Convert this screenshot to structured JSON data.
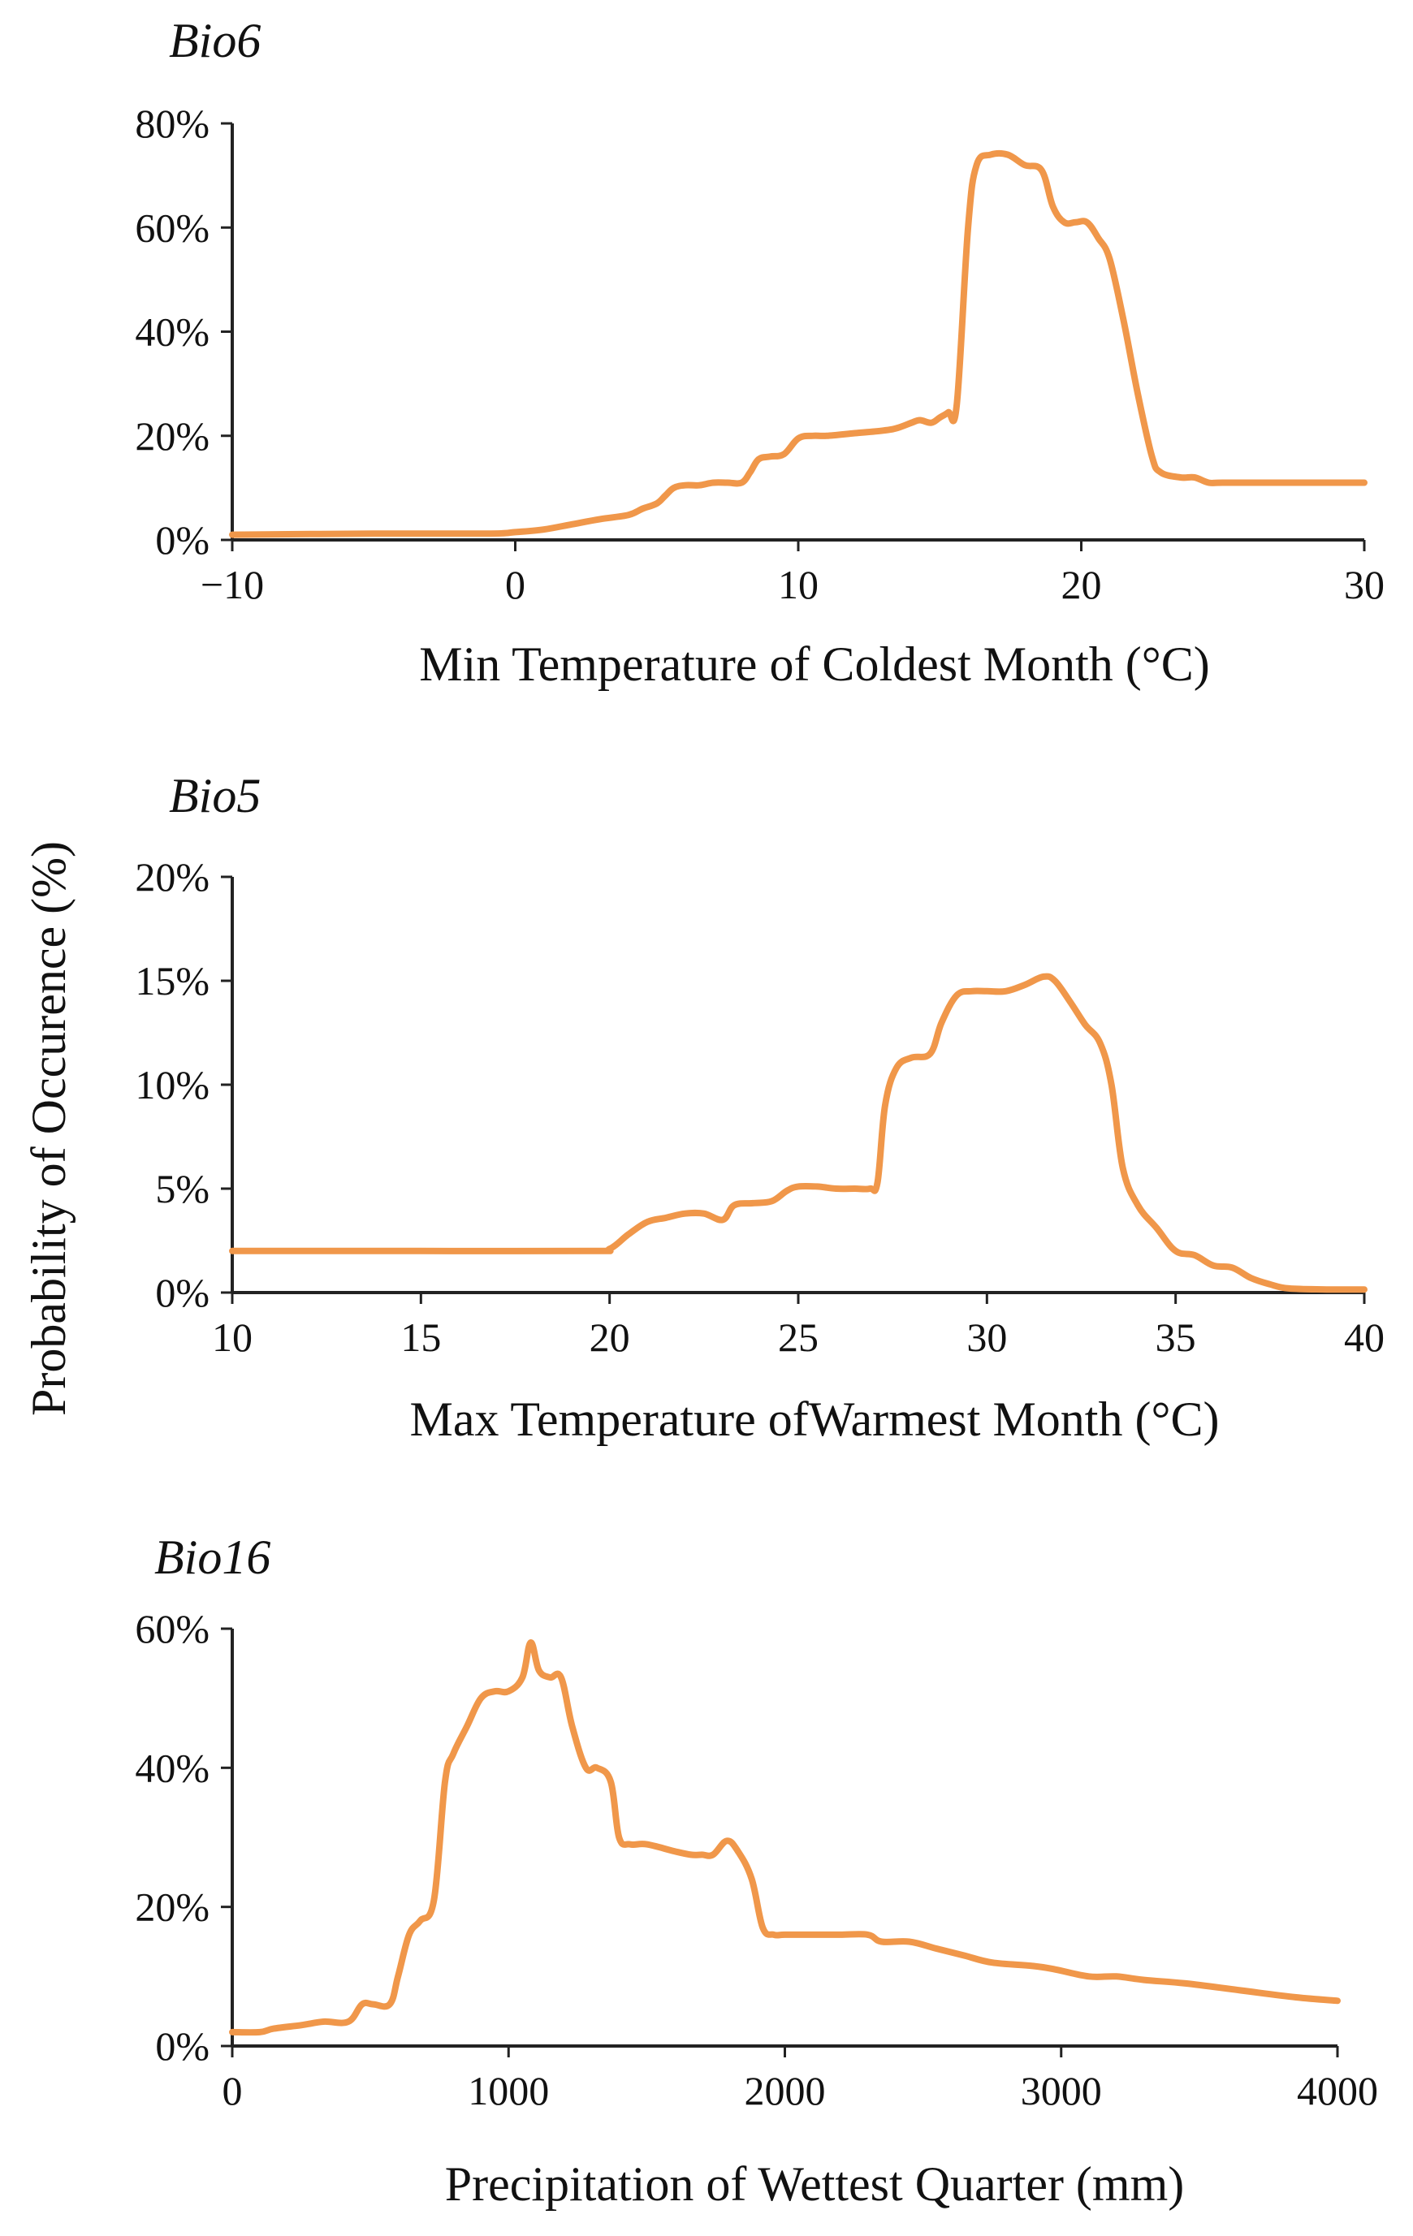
{
  "figure": {
    "shared_ylabel": "Probability of Occurence (%)",
    "line_color": "#f0974a"
  },
  "chart_data": [
    {
      "type": "line",
      "title": "Bio6",
      "xlabel": "Min Temperature of Coldest Month (°C)",
      "ylabel": "Probability of Occurence (%)",
      "xlim": [
        -10,
        30
      ],
      "ylim": [
        0,
        80
      ],
      "xticks": [
        -10,
        0,
        10,
        20,
        30
      ],
      "xtick_labels": [
        "−10",
        "0",
        "10",
        "20",
        "30"
      ],
      "yticks": [
        0,
        20,
        40,
        60,
        80
      ],
      "ytick_labels": [
        "0%",
        "20%",
        "40%",
        "60%",
        "80%"
      ],
      "x": [
        -10,
        -5,
        -1,
        0,
        1,
        2,
        3,
        4,
        4.5,
        5,
        5.3,
        5.6,
        6,
        6.5,
        7,
        7.5,
        8,
        8.3,
        8.6,
        9,
        9.5,
        10,
        10.5,
        11,
        12,
        13,
        13.5,
        14,
        14.3,
        14.7,
        15,
        15.3,
        15.6,
        16,
        16.3,
        16.8,
        17.4,
        18,
        18.6,
        19,
        19.4,
        19.8,
        20.2,
        20.6,
        21,
        21.5,
        22,
        22.5,
        22.8,
        23.5,
        24,
        24.5,
        25,
        27,
        30
      ],
      "y": [
        1,
        1.2,
        1.2,
        1.5,
        2,
        3,
        4,
        4.8,
        6,
        7,
        8.5,
        10,
        10.5,
        10.5,
        11,
        11,
        11,
        13,
        15.5,
        16,
        16.5,
        19.5,
        20,
        20,
        20.5,
        21,
        21.5,
        22.5,
        23,
        22.5,
        23.5,
        24.5,
        26,
        60,
        72,
        74,
        74,
        72,
        71,
        64,
        61,
        61,
        61,
        58,
        54,
        42,
        28,
        16,
        13,
        12,
        12,
        11,
        11,
        11,
        11
      ]
    },
    {
      "type": "line",
      "title": "Bio5",
      "xlabel": "Max Temperature ofWarmest Month (°C)",
      "ylabel": "Probability of Occurence (%)",
      "xlim": [
        10,
        40
      ],
      "ylim": [
        0,
        20
      ],
      "xticks": [
        10,
        15,
        20,
        25,
        30,
        35,
        40
      ],
      "xtick_labels": [
        "10",
        "15",
        "20",
        "25",
        "30",
        "35",
        "40"
      ],
      "yticks": [
        0,
        5,
        10,
        15,
        20
      ],
      "ytick_labels": [
        "0%",
        "5%",
        "10%",
        "15%",
        "20%"
      ],
      "x": [
        10,
        15,
        19.5,
        20,
        20.5,
        21,
        21.5,
        22,
        22.5,
        23,
        23.3,
        23.8,
        24.3,
        24.7,
        25,
        25.5,
        26,
        26.5,
        26.9,
        27.1,
        27.3,
        27.6,
        28,
        28.5,
        28.8,
        29.2,
        29.6,
        30,
        30.5,
        31,
        31.5,
        31.8,
        32.2,
        32.6,
        33,
        33.3,
        33.6,
        34,
        34.5,
        35,
        35.5,
        36,
        36.5,
        37,
        37.5,
        38,
        39,
        40
      ],
      "y": [
        2,
        2,
        2,
        2.1,
        2.8,
        3.4,
        3.6,
        3.8,
        3.8,
        3.5,
        4.2,
        4.3,
        4.4,
        4.9,
        5.1,
        5.1,
        5,
        5,
        5,
        5.3,
        9,
        10.8,
        11.3,
        11.5,
        13,
        14.3,
        14.5,
        14.5,
        14.5,
        14.8,
        15.2,
        15,
        14,
        12.9,
        12,
        10,
        6,
        4.2,
        3.1,
        2,
        1.8,
        1.3,
        1.2,
        0.7,
        0.4,
        0.2,
        0.15,
        0.15
      ]
    },
    {
      "type": "line",
      "title": "Bio16",
      "xlabel": "Precipitation of Wettest Quarter (mm)",
      "ylabel": "Probability of Occurence (%)",
      "xlim": [
        0,
        4000
      ],
      "ylim": [
        0,
        60
      ],
      "xticks": [
        0,
        1000,
        2000,
        3000,
        4000
      ],
      "xtick_labels": [
        "0",
        "1000",
        "2000",
        "3000",
        "4000"
      ],
      "yticks": [
        0,
        20,
        40,
        60
      ],
      "ytick_labels": [
        "0%",
        "20%",
        "40%",
        "60%"
      ],
      "x": [
        0,
        100,
        150,
        250,
        330,
        420,
        470,
        510,
        570,
        600,
        640,
        680,
        730,
        770,
        800,
        850,
        900,
        950,
        1000,
        1050,
        1080,
        1110,
        1150,
        1190,
        1230,
        1280,
        1320,
        1370,
        1400,
        1440,
        1500,
        1600,
        1660,
        1700,
        1740,
        1790,
        1830,
        1880,
        1920,
        1960,
        2000,
        2100,
        2200,
        2300,
        2350,
        2450,
        2550,
        2650,
        2750,
        2900,
        2980,
        3100,
        3200,
        3300,
        3450,
        3650,
        3850,
        4000
      ],
      "y": [
        2,
        2,
        2.5,
        3,
        3.5,
        3.5,
        6,
        6,
        6,
        10,
        16,
        18,
        21,
        38,
        42,
        46,
        50,
        51,
        51,
        53,
        58,
        54,
        53,
        53,
        46,
        40,
        40,
        38,
        30,
        29,
        29,
        28,
        27.5,
        27.5,
        27.5,
        29.5,
        28,
        24,
        17,
        16,
        16,
        16,
        16,
        16,
        15,
        15,
        14,
        13,
        12,
        11.5,
        11,
        10,
        10,
        9.5,
        9,
        8,
        7,
        6.5
      ]
    }
  ]
}
